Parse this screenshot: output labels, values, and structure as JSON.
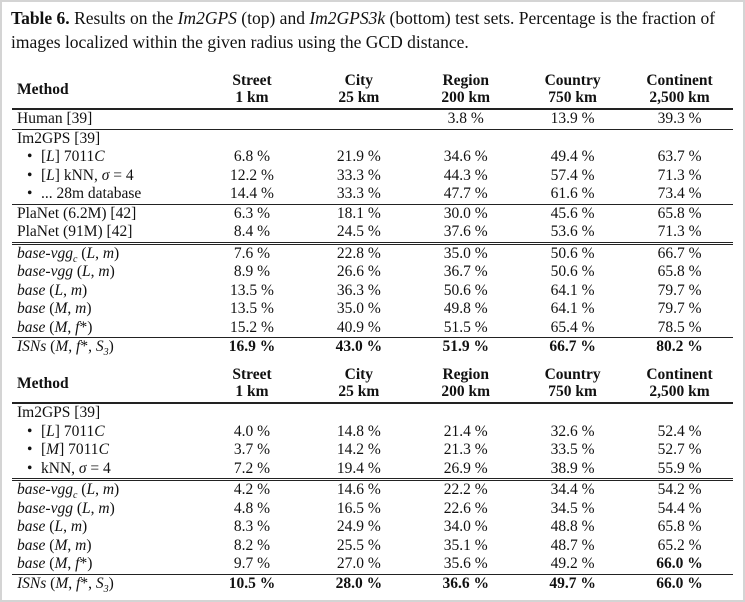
{
  "caption": {
    "label": "Table 6.",
    "segments": [
      {
        "t": " Results on the ",
        "i": false
      },
      {
        "t": "Im2GPS",
        "i": true
      },
      {
        "t": " (top) and ",
        "i": false
      },
      {
        "t": "Im2GPS3k",
        "i": true
      },
      {
        "t": " (bottom) test sets. Percentage is the fraction of images localized within the given radius using the GCD distance.",
        "i": false
      }
    ]
  },
  "columns": {
    "method": "Method",
    "headers": [
      {
        "name": "Street",
        "radius": "1 km"
      },
      {
        "name": "City",
        "radius": "25 km"
      },
      {
        "name": "Region",
        "radius": "200 km"
      },
      {
        "name": "Country",
        "radius": "750 km"
      },
      {
        "name": "Continent",
        "radius": "2,500 km"
      }
    ]
  },
  "tables": [
    {
      "rows": [
        {
          "method": [
            {
              "t": "Human [39]"
            }
          ],
          "values": [
            "",
            "",
            "3.8 %",
            "13.9 %",
            "39.3 %"
          ],
          "bold": [],
          "rule": "b"
        },
        {
          "method": [
            {
              "t": "Im2GPS [39]"
            }
          ],
          "values": [
            "",
            "",
            "",
            "",
            ""
          ],
          "bold": []
        },
        {
          "bullet": true,
          "method": [
            {
              "t": "[",
              "i": false
            },
            {
              "t": "L",
              "i": true
            },
            {
              "t": "] 7011"
            },
            {
              "t": "C",
              "i": true
            }
          ],
          "values": [
            "6.8 %",
            "21.9 %",
            "34.6 %",
            "49.4 %",
            "63.7 %"
          ],
          "bold": []
        },
        {
          "bullet": true,
          "method": [
            {
              "t": "["
            },
            {
              "t": "L",
              "i": true
            },
            {
              "t": "] kNN, "
            },
            {
              "t": "σ",
              "i": true
            },
            {
              "t": " = 4"
            }
          ],
          "values": [
            "12.2 %",
            "33.3 %",
            "44.3 %",
            "57.4 %",
            "71.3 %"
          ],
          "bold": []
        },
        {
          "bullet": true,
          "method": [
            {
              "t": "... 28m database"
            }
          ],
          "values": [
            "14.4 %",
            "33.3 %",
            "47.7 %",
            "61.6 %",
            "73.4 %"
          ],
          "bold": [],
          "rule": "b"
        },
        {
          "method": [
            {
              "t": "PlaNet (6.2M) [42]"
            }
          ],
          "values": [
            "6.3 %",
            "18.1 %",
            "30.0 %",
            "45.6 %",
            "65.8 %"
          ],
          "bold": []
        },
        {
          "method": [
            {
              "t": "PlaNet (91M) [42]"
            }
          ],
          "values": [
            "8.4 %",
            "24.5 %",
            "37.6 %",
            "53.6 %",
            "71.3 %"
          ],
          "bold": [],
          "rule": "dbl"
        },
        {
          "method": [
            {
              "t": "base-vgg",
              "i": true
            },
            {
              "t": "c",
              "sub": true
            },
            {
              "t": " ("
            },
            {
              "t": "L",
              "i": true
            },
            {
              "t": ", "
            },
            {
              "t": "m",
              "i": true
            },
            {
              "t": ")"
            }
          ],
          "values": [
            "7.6 %",
            "22.8 %",
            "35.0 %",
            "50.6 %",
            "66.7 %"
          ],
          "bold": []
        },
        {
          "method": [
            {
              "t": "base-vgg",
              "i": true
            },
            {
              "t": " ("
            },
            {
              "t": "L",
              "i": true
            },
            {
              "t": ", "
            },
            {
              "t": "m",
              "i": true
            },
            {
              "t": ")"
            }
          ],
          "values": [
            "8.9 %",
            "26.6 %",
            "36.7 %",
            "50.6 %",
            "65.8 %"
          ],
          "bold": []
        },
        {
          "method": [
            {
              "t": "base",
              "i": true
            },
            {
              "t": " ("
            },
            {
              "t": "L",
              "i": true
            },
            {
              "t": ", "
            },
            {
              "t": "m",
              "i": true
            },
            {
              "t": ")"
            }
          ],
          "values": [
            "13.5 %",
            "36.3 %",
            "50.6 %",
            "64.1 %",
            "79.7 %"
          ],
          "bold": []
        },
        {
          "method": [
            {
              "t": "base",
              "i": true
            },
            {
              "t": " ("
            },
            {
              "t": "M",
              "i": true
            },
            {
              "t": ", "
            },
            {
              "t": "m",
              "i": true
            },
            {
              "t": ")"
            }
          ],
          "values": [
            "13.5 %",
            "35.0 %",
            "49.8 %",
            "64.1 %",
            "79.7 %"
          ],
          "bold": []
        },
        {
          "method": [
            {
              "t": "base",
              "i": true
            },
            {
              "t": " ("
            },
            {
              "t": "M",
              "i": true
            },
            {
              "t": ", "
            },
            {
              "t": "f",
              "i": true
            },
            {
              "t": "*)"
            }
          ],
          "values": [
            "15.2 %",
            "40.9 %",
            "51.5 %",
            "65.4 %",
            "78.5 %"
          ],
          "bold": [],
          "rule": "b"
        },
        {
          "method": [
            {
              "t": "ISNs",
              "i": true
            },
            {
              "t": " ("
            },
            {
              "t": "M",
              "i": true
            },
            {
              "t": ", "
            },
            {
              "t": "f",
              "i": true
            },
            {
              "t": "*, "
            },
            {
              "t": "S",
              "i": true
            },
            {
              "t": "3",
              "sub": true
            },
            {
              "t": ")"
            }
          ],
          "values": [
            "16.9 %",
            "43.0 %",
            "51.9 %",
            "66.7 %",
            "80.2 %"
          ],
          "bold": [
            0,
            1,
            2,
            3,
            4
          ]
        }
      ]
    },
    {
      "rows": [
        {
          "method": [
            {
              "t": "Im2GPS [39]"
            }
          ],
          "values": [
            "",
            "",
            "",
            "",
            ""
          ],
          "bold": []
        },
        {
          "bullet": true,
          "method": [
            {
              "t": "["
            },
            {
              "t": "L",
              "i": true
            },
            {
              "t": "] 7011"
            },
            {
              "t": "C",
              "i": true
            }
          ],
          "values": [
            "4.0 %",
            "14.8 %",
            "21.4 %",
            "32.6 %",
            "52.4 %"
          ],
          "bold": []
        },
        {
          "bullet": true,
          "method": [
            {
              "t": "["
            },
            {
              "t": "M",
              "i": true
            },
            {
              "t": "] 7011"
            },
            {
              "t": "C",
              "i": true
            }
          ],
          "values": [
            "3.7 %",
            "14.2 %",
            "21.3 %",
            "33.5 %",
            "52.7 %"
          ],
          "bold": []
        },
        {
          "bullet": true,
          "method": [
            {
              "t": "kNN, "
            },
            {
              "t": "σ",
              "i": true
            },
            {
              "t": " = 4"
            }
          ],
          "values": [
            "7.2 %",
            "19.4 %",
            "26.9 %",
            "38.9 %",
            "55.9 %"
          ],
          "bold": [],
          "rule": "dbl"
        },
        {
          "method": [
            {
              "t": "base-vgg",
              "i": true
            },
            {
              "t": "c",
              "sub": true
            },
            {
              "t": " ("
            },
            {
              "t": "L",
              "i": true
            },
            {
              "t": ", "
            },
            {
              "t": "m",
              "i": true
            },
            {
              "t": ")"
            }
          ],
          "values": [
            "4.2 %",
            "14.6 %",
            "22.2 %",
            "34.4 %",
            "54.2 %"
          ],
          "bold": []
        },
        {
          "method": [
            {
              "t": "base-vgg",
              "i": true
            },
            {
              "t": " ("
            },
            {
              "t": "L",
              "i": true
            },
            {
              "t": ", "
            },
            {
              "t": "m",
              "i": true
            },
            {
              "t": ")"
            }
          ],
          "values": [
            "4.8 %",
            "16.5 %",
            "22.6 %",
            "34.5 %",
            "54.4 %"
          ],
          "bold": []
        },
        {
          "method": [
            {
              "t": "base",
              "i": true
            },
            {
              "t": " ("
            },
            {
              "t": "L",
              "i": true
            },
            {
              "t": ", "
            },
            {
              "t": "m",
              "i": true
            },
            {
              "t": ")"
            }
          ],
          "values": [
            "8.3 %",
            "24.9 %",
            "34.0 %",
            "48.8 %",
            "65.8 %"
          ],
          "bold": []
        },
        {
          "method": [
            {
              "t": "base",
              "i": true
            },
            {
              "t": " ("
            },
            {
              "t": "M",
              "i": true
            },
            {
              "t": ", "
            },
            {
              "t": "m",
              "i": true
            },
            {
              "t": ")"
            }
          ],
          "values": [
            "8.2 %",
            "25.5 %",
            "35.1 %",
            "48.7 %",
            "65.2 %"
          ],
          "bold": []
        },
        {
          "method": [
            {
              "t": "base",
              "i": true
            },
            {
              "t": " ("
            },
            {
              "t": "M",
              "i": true
            },
            {
              "t": ", "
            },
            {
              "t": "f",
              "i": true
            },
            {
              "t": "*)"
            }
          ],
          "values": [
            "9.7 %",
            "27.0 %",
            "35.6 %",
            "49.2 %",
            "66.0 %"
          ],
          "bold": [
            4
          ],
          "rule": "b"
        },
        {
          "method": [
            {
              "t": "ISNs",
              "i": true
            },
            {
              "t": " ("
            },
            {
              "t": "M",
              "i": true
            },
            {
              "t": ", "
            },
            {
              "t": "f",
              "i": true
            },
            {
              "t": "*, "
            },
            {
              "t": "S",
              "i": true
            },
            {
              "t": "3",
              "sub": true
            },
            {
              "t": ")"
            }
          ],
          "values": [
            "10.5 %",
            "28.0 %",
            "36.6 %",
            "49.7 %",
            "66.0 %"
          ],
          "bold": [
            0,
            1,
            2,
            3,
            4
          ]
        }
      ]
    }
  ]
}
